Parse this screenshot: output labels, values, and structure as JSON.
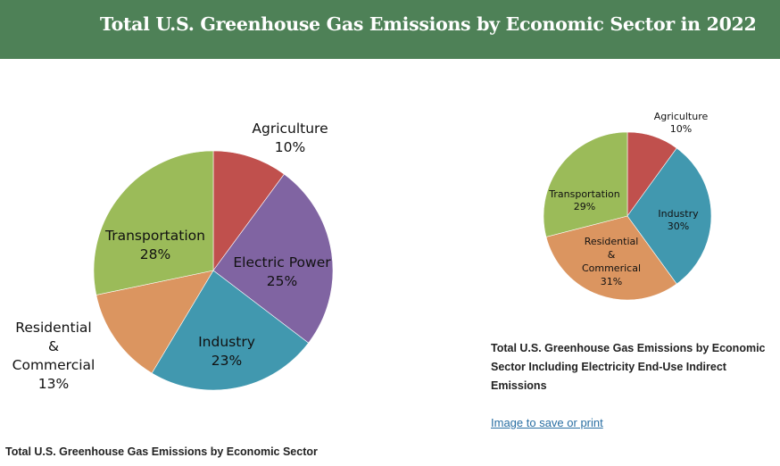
{
  "header": {
    "title": "Total U.S. Greenhouse Gas Emissions by Economic Sector in 2022",
    "background_color": "#4e8157"
  },
  "chart_data": [
    {
      "type": "pie",
      "title": "Total U.S. Greenhouse Gas Emissions by Economic Sector",
      "start": "12 o'clock, clockwise",
      "slices": [
        {
          "label": "Agriculture",
          "value": 10,
          "value_label": "10%",
          "color": "#c0504d"
        },
        {
          "label": "Electric Power",
          "value": 25,
          "value_label": "25%",
          "color": "#8064a2"
        },
        {
          "label": "Industry",
          "value": 23,
          "value_label": "23%",
          "color": "#4198af"
        },
        {
          "label": "Residential & Commercial",
          "value": 13,
          "value_label": "13%",
          "color": "#db9560"
        },
        {
          "label": "Transportation",
          "value": 28,
          "value_label": "28%",
          "color": "#9bbb59"
        }
      ]
    },
    {
      "type": "pie",
      "title": "Total U.S. Greenhouse Gas Emissions by Economic Sector Including Electricity End-Use Indirect Emissions",
      "start": "12 o'clock, clockwise",
      "slices": [
        {
          "label": "Agriculture",
          "value": 10,
          "value_label": "10%",
          "color": "#c0504d"
        },
        {
          "label": "Industry",
          "value": 30,
          "value_label": "30%",
          "color": "#4198af"
        },
        {
          "label": "Residential & Commerical",
          "value": 31,
          "value_label": "31%",
          "color": "#db9560"
        },
        {
          "label": "Transportation",
          "value": 29,
          "value_label": "29%",
          "color": "#9bbb59"
        }
      ]
    }
  ],
  "labels": {
    "left": [
      {
        "lines": [
          "Agriculture",
          "10%"
        ]
      },
      {
        "lines": [
          "Electric Power",
          "25%"
        ]
      },
      {
        "lines": [
          "Industry",
          "23%"
        ]
      },
      {
        "lines": [
          "Residential",
          "&",
          "Commercial",
          "13%"
        ]
      },
      {
        "lines": [
          "Transportation",
          "28%"
        ]
      }
    ],
    "right": [
      {
        "lines": [
          "Agriculture",
          "10%"
        ]
      },
      {
        "lines": [
          "Industry",
          "30%"
        ]
      },
      {
        "lines": [
          "Residential",
          "&",
          "Commerical",
          "31%"
        ]
      },
      {
        "lines": [
          "Transportation",
          "29%"
        ]
      }
    ]
  },
  "captions": {
    "left": "Total U.S. Greenhouse Gas Emissions by Economic Sector",
    "right": "Total U.S. Greenhouse Gas Emissions by Economic Sector Including Electricity End-Use Indirect Emissions"
  },
  "link": {
    "label": "Image to save or print"
  }
}
